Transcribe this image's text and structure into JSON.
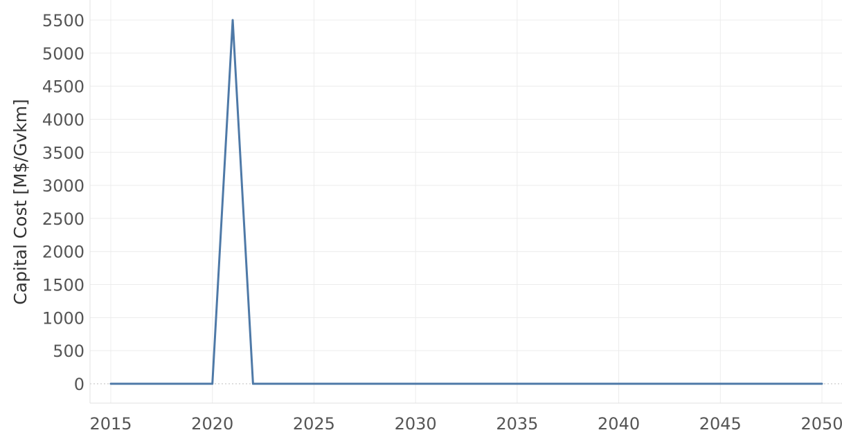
{
  "chart_data": {
    "type": "line",
    "title": "",
    "xlabel": "",
    "ylabel": "Capital Cost [M$/Gvkm]",
    "x": [
      2015,
      2016,
      2017,
      2018,
      2019,
      2020,
      2021,
      2022,
      2023,
      2024,
      2025,
      2026,
      2027,
      2028,
      2029,
      2030,
      2031,
      2032,
      2033,
      2034,
      2035,
      2036,
      2037,
      2038,
      2039,
      2040,
      2041,
      2042,
      2043,
      2044,
      2045,
      2046,
      2047,
      2048,
      2049,
      2050
    ],
    "series": [
      {
        "values": [
          0,
          0,
          0,
          0,
          0,
          0,
          5500,
          0,
          0,
          0,
          0,
          0,
          0,
          0,
          0,
          0,
          0,
          0,
          0,
          0,
          0,
          0,
          0,
          0,
          0,
          0,
          0,
          0,
          0,
          0,
          0,
          0,
          0,
          0,
          0,
          0
        ],
        "color": "#4e79a7"
      }
    ],
    "xticks": [
      "2015",
      "2020",
      "2025",
      "2030",
      "2035",
      "2040",
      "2045",
      "2050"
    ],
    "yticks": [
      "0",
      "500",
      "1000",
      "1500",
      "2000",
      "2500",
      "3000",
      "3500",
      "4000",
      "4500",
      "5000",
      "5500"
    ],
    "xlim": [
      2014,
      2051
    ],
    "ylim": [
      -280,
      5780
    ],
    "grid": true,
    "legend": "none"
  }
}
